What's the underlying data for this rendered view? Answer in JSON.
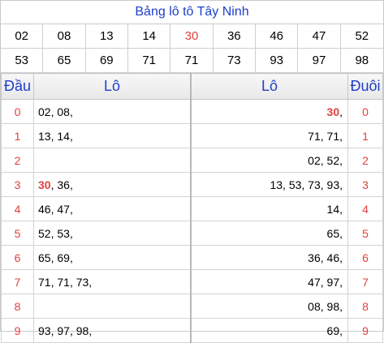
{
  "title": "Bảng lô tô Tây Ninh",
  "numbers_row1": [
    "02",
    "08",
    "13",
    "14",
    "30",
    "36",
    "46",
    "47",
    "52"
  ],
  "numbers_row2": [
    "53",
    "65",
    "69",
    "71",
    "71",
    "73",
    "93",
    "97",
    "98"
  ],
  "highlight": "30",
  "headers": {
    "dau": "Đầu",
    "lo_left": "Lô",
    "lo_right": "Lô",
    "duoi": "Đuôi"
  },
  "rows": [
    {
      "dau": "0",
      "left": [
        "02",
        "08"
      ],
      "right": [
        "30"
      ],
      "duoi": "0"
    },
    {
      "dau": "1",
      "left": [
        "13",
        "14"
      ],
      "right": [
        "71",
        "71"
      ],
      "duoi": "1"
    },
    {
      "dau": "2",
      "left": [],
      "right": [
        "02",
        "52"
      ],
      "duoi": "2"
    },
    {
      "dau": "3",
      "left": [
        "30",
        "36"
      ],
      "right": [
        "13",
        "53",
        "73",
        "93"
      ],
      "duoi": "3"
    },
    {
      "dau": "4",
      "left": [
        "46",
        "47"
      ],
      "right": [
        "14"
      ],
      "duoi": "4"
    },
    {
      "dau": "5",
      "left": [
        "52",
        "53"
      ],
      "right": [
        "65"
      ],
      "duoi": "5"
    },
    {
      "dau": "6",
      "left": [
        "65",
        "69"
      ],
      "right": [
        "36",
        "46"
      ],
      "duoi": "6"
    },
    {
      "dau": "7",
      "left": [
        "71",
        "71",
        "73"
      ],
      "right": [
        "47",
        "97"
      ],
      "duoi": "7"
    },
    {
      "dau": "8",
      "left": [],
      "right": [
        "08",
        "98"
      ],
      "duoi": "8"
    },
    {
      "dau": "9",
      "left": [
        "93",
        "97",
        "98"
      ],
      "right": [
        "69"
      ],
      "duoi": "9"
    }
  ],
  "colors": {
    "title": "#1f3fc7",
    "highlight": "#e0403f"
  }
}
